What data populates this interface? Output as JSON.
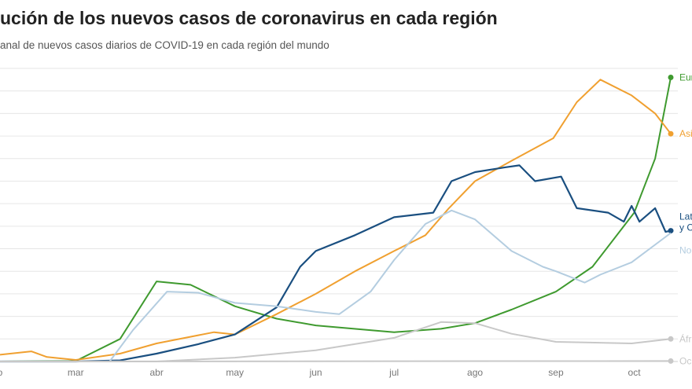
{
  "title": "ución de los nuevos casos de coronavirus en cada región",
  "subtitle": "anal de nuevos casos diarios de COVID-19 en cada región del mundo",
  "chart_data": {
    "type": "line",
    "title": "ución de los nuevos casos de coronavirus en cada región",
    "subtitle": "anal de nuevos casos diarios de COVID-19 en cada región del mundo",
    "x_tick_labels": [
      {
        "date": "2020-02-01",
        "label": "o"
      },
      {
        "date": "2020-03-01",
        "label": "mar"
      },
      {
        "date": "2020-04-01",
        "label": "abr"
      },
      {
        "date": "2020-05-01",
        "label": "may"
      },
      {
        "date": "2020-06-01",
        "label": "jun"
      },
      {
        "date": "2020-07-01",
        "label": "jul"
      },
      {
        "date": "2020-08-01",
        "label": "ago"
      },
      {
        "date": "2020-09-01",
        "label": "sep"
      },
      {
        "date": "2020-10-01",
        "label": "oct"
      }
    ],
    "xlim": [
      "2020-02-01",
      "2020-10-15"
    ],
    "ylim": [
      0,
      13
    ],
    "y_tick_labels_shown": false,
    "grid": true,
    "legend": "end-of-line labels (right)",
    "series": [
      {
        "label_lines": [
          "Eur"
        ],
        "color": "#3f9a2f",
        "width": 2,
        "end_marker": true,
        "points": [
          [
            "2020-02-01",
            0
          ],
          [
            "2020-03-01",
            0.02
          ],
          [
            "2020-03-18",
            1.0
          ],
          [
            "2020-04-01",
            3.55
          ],
          [
            "2020-04-14",
            3.4
          ],
          [
            "2020-05-01",
            2.45
          ],
          [
            "2020-05-17",
            1.9
          ],
          [
            "2020-06-01",
            1.6
          ],
          [
            "2020-07-01",
            1.3
          ],
          [
            "2020-07-19",
            1.45
          ],
          [
            "2020-08-01",
            1.7
          ],
          [
            "2020-08-15",
            2.3
          ],
          [
            "2020-09-01",
            3.1
          ],
          [
            "2020-09-15",
            4.2
          ],
          [
            "2020-10-01",
            6.6
          ],
          [
            "2020-10-09",
            9.0
          ],
          [
            "2020-10-15",
            12.6
          ]
        ]
      },
      {
        "label_lines": [
          "Asi"
        ],
        "color": "#f0a030",
        "width": 2,
        "end_marker": true,
        "points": [
          [
            "2020-02-01",
            0.3
          ],
          [
            "2020-02-13",
            0.45
          ],
          [
            "2020-02-19",
            0.2
          ],
          [
            "2020-03-01",
            0.07
          ],
          [
            "2020-03-18",
            0.35
          ],
          [
            "2020-04-01",
            0.8
          ],
          [
            "2020-04-23",
            1.3
          ],
          [
            "2020-05-01",
            1.2
          ],
          [
            "2020-05-17",
            2.1
          ],
          [
            "2020-06-01",
            3.0
          ],
          [
            "2020-06-16",
            4.0
          ],
          [
            "2020-07-01",
            4.9
          ],
          [
            "2020-07-13",
            5.6
          ],
          [
            "2020-07-22",
            6.8
          ],
          [
            "2020-08-01",
            8.0
          ],
          [
            "2020-08-15",
            8.9
          ],
          [
            "2020-08-31",
            9.9
          ],
          [
            "2020-09-09",
            11.5
          ],
          [
            "2020-09-18",
            12.5
          ],
          [
            "2020-09-30",
            11.8
          ],
          [
            "2020-10-09",
            11.0
          ],
          [
            "2020-10-15",
            10.1
          ]
        ]
      },
      {
        "label_lines": [
          "Lat",
          "y C"
        ],
        "color": "#1a4f80",
        "width": 2.2,
        "end_marker": true,
        "points": [
          [
            "2020-02-01",
            0
          ],
          [
            "2020-03-01",
            0
          ],
          [
            "2020-03-18",
            0.05
          ],
          [
            "2020-04-01",
            0.35
          ],
          [
            "2020-04-17",
            0.77
          ],
          [
            "2020-05-01",
            1.2
          ],
          [
            "2020-05-17",
            2.4
          ],
          [
            "2020-05-26",
            4.2
          ],
          [
            "2020-06-01",
            4.9
          ],
          [
            "2020-06-16",
            5.6
          ],
          [
            "2020-07-01",
            6.4
          ],
          [
            "2020-07-16",
            6.6
          ],
          [
            "2020-07-23",
            8.0
          ],
          [
            "2020-08-01",
            8.4
          ],
          [
            "2020-08-12",
            8.6
          ],
          [
            "2020-08-18",
            8.7
          ],
          [
            "2020-08-24",
            8.0
          ],
          [
            "2020-09-03",
            8.2
          ],
          [
            "2020-09-09",
            6.8
          ],
          [
            "2020-09-21",
            6.6
          ],
          [
            "2020-09-27",
            6.2
          ],
          [
            "2020-09-30",
            6.9
          ],
          [
            "2020-10-03",
            6.2
          ],
          [
            "2020-10-09",
            6.8
          ],
          [
            "2020-10-13",
            5.75
          ],
          [
            "2020-10-15",
            5.8
          ]
        ]
      },
      {
        "label_lines": [
          "No"
        ],
        "color": "#b4cde0",
        "width": 2,
        "end_marker": false,
        "points": [
          [
            "2020-02-01",
            0
          ],
          [
            "2020-03-14",
            0
          ],
          [
            "2020-03-23",
            1.4
          ],
          [
            "2020-04-05",
            3.1
          ],
          [
            "2020-04-17",
            3.05
          ],
          [
            "2020-05-01",
            2.6
          ],
          [
            "2020-05-17",
            2.45
          ],
          [
            "2020-06-01",
            2.2
          ],
          [
            "2020-06-10",
            2.1
          ],
          [
            "2020-06-22",
            3.1
          ],
          [
            "2020-07-01",
            4.5
          ],
          [
            "2020-07-13",
            6.1
          ],
          [
            "2020-07-23",
            6.7
          ],
          [
            "2020-08-01",
            6.3
          ],
          [
            "2020-08-15",
            4.9
          ],
          [
            "2020-08-27",
            4.2
          ],
          [
            "2020-09-01",
            4.0
          ],
          [
            "2020-09-12",
            3.5
          ],
          [
            "2020-09-18",
            3.85
          ],
          [
            "2020-09-30",
            4.4
          ],
          [
            "2020-10-15",
            5.7
          ]
        ]
      },
      {
        "label_lines": [
          "Áfr"
        ],
        "color": "#c8c8c8",
        "width": 2,
        "end_marker": true,
        "points": [
          [
            "2020-02-01",
            0
          ],
          [
            "2020-04-01",
            0
          ],
          [
            "2020-05-01",
            0.17
          ],
          [
            "2020-06-01",
            0.5
          ],
          [
            "2020-07-01",
            1.05
          ],
          [
            "2020-07-19",
            1.75
          ],
          [
            "2020-08-01",
            1.7
          ],
          [
            "2020-08-15",
            1.23
          ],
          [
            "2020-09-01",
            0.87
          ],
          [
            "2020-09-30",
            0.8
          ],
          [
            "2020-10-15",
            1.0
          ]
        ]
      },
      {
        "label_lines": [
          "Oc"
        ],
        "color": "#c8c8c8",
        "width": 2,
        "end_marker": true,
        "points": [
          [
            "2020-02-01",
            0
          ],
          [
            "2020-10-15",
            0.02
          ]
        ]
      }
    ]
  }
}
